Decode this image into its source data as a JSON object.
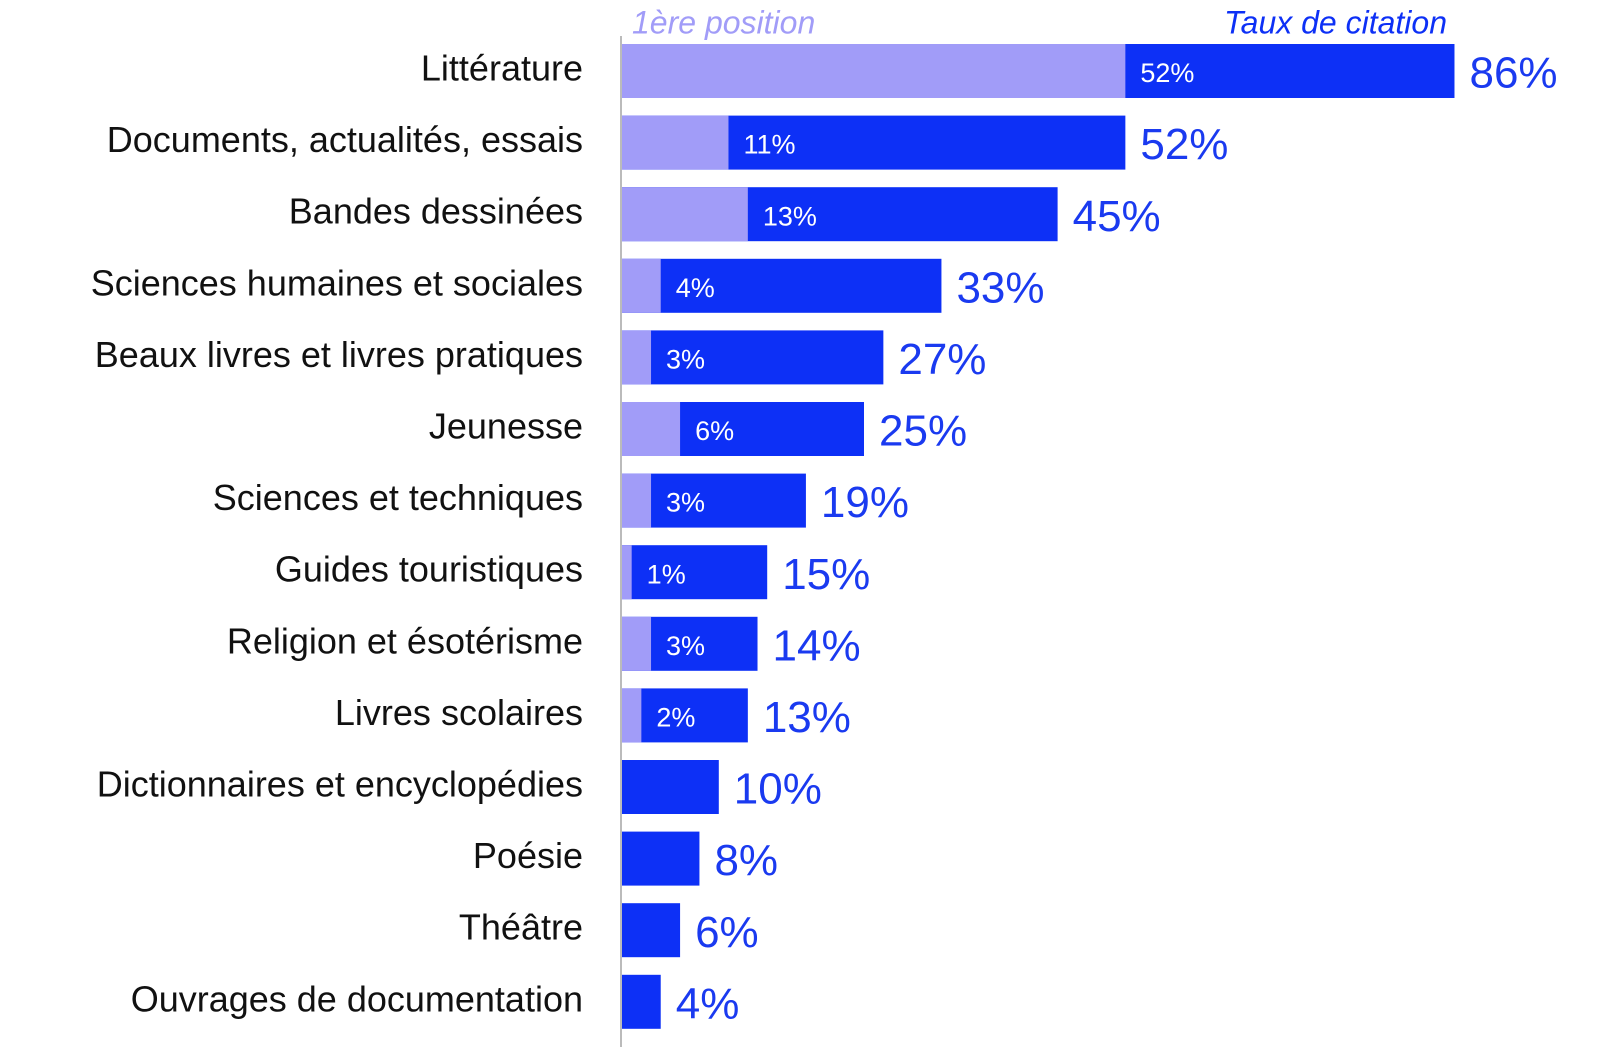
{
  "chart_data": {
    "type": "bar",
    "orientation": "horizontal",
    "overlap": true,
    "categories": [
      "Littérature",
      "Documents, actualités, essais",
      "Bandes dessinées",
      "Sciences humaines et sociales",
      "Beaux livres et livres pratiques",
      "Jeunesse",
      "Sciences et techniques",
      "Guides touristiques",
      "Religion et ésotérisme",
      "Livres scolaires",
      "Dictionnaires et encyclopédies",
      "Poésie",
      "Théâtre",
      "Ouvrages de documentation"
    ],
    "series": [
      {
        "name": "1ère position",
        "color": "#a19cf8",
        "values": [
          52,
          11,
          13,
          4,
          3,
          6,
          3,
          1,
          3,
          2,
          null,
          null,
          null,
          null
        ],
        "value_labels": [
          "52%",
          "11%",
          "13%",
          "4%",
          "3%",
          "6%",
          "3%",
          "1%",
          "3%",
          "2%",
          null,
          null,
          null,
          null
        ]
      },
      {
        "name": "Taux de citation",
        "color": "#0d30f6",
        "values": [
          86,
          52,
          45,
          33,
          27,
          25,
          19,
          15,
          14,
          13,
          10,
          8,
          6,
          4
        ],
        "value_labels": [
          "86%",
          "52%",
          "45%",
          "33%",
          "27%",
          "25%",
          "19%",
          "15%",
          "14%",
          "13%",
          "10%",
          "8%",
          "6%",
          "4%"
        ]
      }
    ]
  }
}
